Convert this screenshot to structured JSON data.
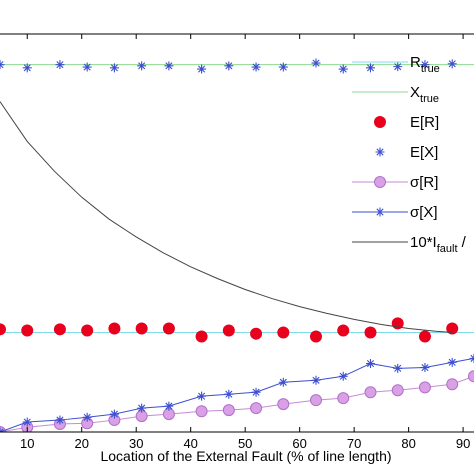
{
  "chart_data": {
    "type": "line",
    "xlabel": "Location of the External Fault (% of line length)",
    "ylabel": "",
    "title": "",
    "x_ticks": [
      10,
      20,
      30,
      40,
      50,
      60,
      70,
      80,
      90
    ],
    "x_tick_labels": [
      "10",
      "20",
      "30",
      "40",
      "50",
      "60",
      "70",
      "80",
      "90"
    ],
    "xlim": [
      5,
      92
    ],
    "ylim": [
      0,
      1
    ],
    "grid": false,
    "legend_placement": "top-right",
    "legend": [
      {
        "key": "r_true",
        "label": "R",
        "sub": "true",
        "style": "line",
        "color": "#7fdbe8"
      },
      {
        "key": "x_true",
        "label": "X",
        "sub": "true",
        "style": "line",
        "color": "#8fd88f"
      },
      {
        "key": "e_r",
        "label": "E[R]",
        "sub": "",
        "style": "dot",
        "color": "#e8001c"
      },
      {
        "key": "e_x",
        "label": "E[X]",
        "sub": "",
        "style": "star",
        "color": "#3b4fd0"
      },
      {
        "key": "sigma_r",
        "label": "σ[R]",
        "sub": "",
        "style": "circle-line",
        "color": "#d9a0e6"
      },
      {
        "key": "sigma_x",
        "label": "σ[X]",
        "sub": "",
        "style": "star-line",
        "color": "#3b4fd0"
      },
      {
        "key": "i_fault",
        "label": "10*I",
        "sub": "fault",
        "suffix": "/",
        "style": "line",
        "color": "#444444"
      }
    ],
    "series": [
      {
        "key": "r_true",
        "type": "line",
        "color": "#7fdbe8",
        "x": [
          5,
          92
        ],
        "y": [
          0.25,
          0.25
        ]
      },
      {
        "key": "x_true",
        "type": "line",
        "color": "#8fd88f",
        "x": [
          5,
          92
        ],
        "y": [
          0.923,
          0.923
        ]
      },
      {
        "key": "e_r",
        "type": "dot",
        "color": "#e8001c",
        "x": [
          5,
          10,
          16,
          21,
          26,
          31,
          36,
          42,
          47,
          52,
          57,
          63,
          68,
          73,
          78,
          83,
          88
        ],
        "y": [
          0.258,
          0.255,
          0.258,
          0.255,
          0.26,
          0.26,
          0.26,
          0.24,
          0.255,
          0.247,
          0.25,
          0.24,
          0.255,
          0.25,
          0.273,
          0.24,
          0.26
        ]
      },
      {
        "key": "e_x",
        "type": "star",
        "color": "#3b4fd0",
        "x": [
          5,
          10,
          16,
          21,
          26,
          31,
          36,
          42,
          47,
          52,
          57,
          63,
          68,
          73,
          78,
          83,
          88
        ],
        "y": [
          0.923,
          0.915,
          0.923,
          0.917,
          0.915,
          0.92,
          0.92,
          0.912,
          0.92,
          0.917,
          0.917,
          0.927,
          0.912,
          0.915,
          0.918,
          0.923,
          0.925
        ]
      },
      {
        "key": "sigma_r",
        "type": "circle-line",
        "color": "#d9a0e6",
        "x": [
          5,
          10,
          16,
          21,
          26,
          31,
          36,
          42,
          47,
          52,
          57,
          63,
          68,
          73,
          78,
          83,
          88,
          92
        ],
        "y": [
          0.0,
          0.012,
          0.02,
          0.022,
          0.03,
          0.04,
          0.045,
          0.052,
          0.055,
          0.06,
          0.07,
          0.08,
          0.085,
          0.1,
          0.105,
          0.112,
          0.12,
          0.14
        ]
      },
      {
        "key": "sigma_x",
        "type": "star-line",
        "color": "#3b4fd0",
        "x": [
          5,
          10,
          16,
          21,
          26,
          31,
          36,
          42,
          47,
          52,
          57,
          63,
          68,
          73,
          78,
          83,
          88,
          92
        ],
        "y": [
          0.0,
          0.025,
          0.03,
          0.037,
          0.045,
          0.06,
          0.065,
          0.09,
          0.095,
          0.1,
          0.125,
          0.13,
          0.14,
          0.172,
          0.16,
          0.162,
          0.175,
          0.185
        ]
      },
      {
        "key": "i_fault",
        "type": "line",
        "color": "#444444",
        "x": [
          5,
          10,
          15,
          20,
          25,
          30,
          35,
          40,
          45,
          50,
          55,
          60,
          65,
          70,
          75,
          80,
          85,
          88
        ],
        "y": [
          0.83,
          0.73,
          0.655,
          0.59,
          0.535,
          0.49,
          0.45,
          0.415,
          0.385,
          0.358,
          0.335,
          0.315,
          0.298,
          0.283,
          0.27,
          0.26,
          0.253,
          0.25
        ]
      }
    ]
  }
}
